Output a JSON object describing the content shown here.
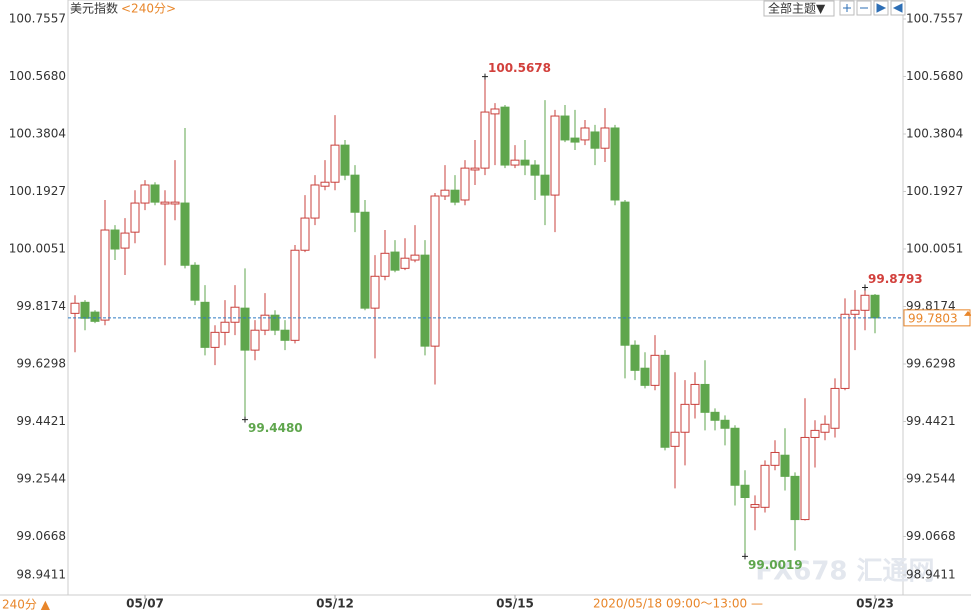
{
  "header": {
    "title": "美元指数",
    "period": "<240分>",
    "theme_button": "全部主题▼"
  },
  "footer": {
    "period": "240分 ▲",
    "cursor_time": "2020/05/18 09:00～13:00 —"
  },
  "watermark": "FX678 汇通网",
  "chart_data": {
    "type": "candlestick",
    "categories": [
      null,
      null,
      null,
      null,
      null,
      null,
      null,
      "05/07",
      null,
      null,
      null,
      null,
      null,
      null,
      null,
      null,
      null,
      null,
      null,
      null,
      null,
      null,
      null,
      null,
      null,
      null,
      "05/12",
      null,
      null,
      null,
      null,
      null,
      null,
      null,
      null,
      null,
      null,
      null,
      null,
      null,
      null,
      null,
      null,
      null,
      "05/15",
      null,
      null,
      null,
      null,
      null,
      null,
      null,
      null,
      null,
      null,
      null,
      null,
      null,
      null,
      null,
      null,
      null,
      null,
      null,
      null,
      null,
      null,
      null,
      null,
      null,
      null,
      null,
      null,
      null,
      null,
      null,
      null,
      null,
      null,
      null,
      "05/23"
    ],
    "open": [
      99.795,
      99.831,
      99.799,
      99.773,
      100.067,
      100.008,
      100.06,
      100.155,
      100.214,
      100.152,
      100.152,
      100.155,
      99.952,
      99.831,
      99.684,
      99.733,
      99.766,
      99.812,
      99.675,
      99.74,
      99.789,
      99.74,
      99.707,
      100.001,
      100.106,
      100.21,
      100.223,
      100.344,
      100.246,
      100.125,
      99.812,
      99.916,
      99.995,
      99.942,
      99.969,
      99.985,
      99.688,
      100.178,
      100.197,
      100.165,
      100.263,
      100.269,
      100.446,
      100.468,
      100.279,
      100.295,
      100.279,
      100.246,
      100.181,
      100.439,
      100.367,
      100.361,
      100.387,
      100.334,
      100.4,
      100.158,
      99.691,
      99.616,
      99.56,
      99.658,
      99.361,
      99.407,
      99.498,
      99.563,
      99.472,
      99.446,
      99.42,
      99.234,
      99.162,
      99.162,
      99.299,
      99.332,
      99.263,
      99.122,
      99.39,
      99.407,
      99.42,
      99.55,
      99.792,
      99.805,
      99.854
    ],
    "high": [
      99.854,
      99.838,
      99.805,
      100.165,
      100.083,
      100.106,
      100.197,
      100.23,
      100.223,
      100.197,
      100.295,
      100.4,
      99.962,
      99.887,
      99.756,
      99.838,
      99.887,
      99.942,
      99.773,
      99.861,
      99.805,
      99.773,
      100.018,
      100.181,
      100.246,
      100.295,
      100.442,
      100.361,
      100.279,
      100.165,
      99.985,
      100.067,
      100.034,
      100.04,
      100.083,
      100.034,
      100.188,
      100.279,
      100.246,
      100.295,
      100.361,
      100.5678,
      100.481,
      100.475,
      100.344,
      100.361,
      100.295,
      100.491,
      100.459,
      100.475,
      100.459,
      100.426,
      100.41,
      100.465,
      100.41,
      100.165,
      99.707,
      99.668,
      99.724,
      99.675,
      99.603,
      99.577,
      99.603,
      99.642,
      99.485,
      99.462,
      99.43,
      99.283,
      99.201,
      99.315,
      99.381,
      99.42,
      99.276,
      99.518,
      99.446,
      99.462,
      99.583,
      99.844,
      99.871,
      99.8793,
      99.858
    ],
    "low": [
      99.668,
      99.74,
      99.763,
      99.756,
      99.969,
      99.92,
      100.024,
      100.132,
      100.148,
      99.952,
      100.099,
      99.942,
      99.822,
      99.658,
      99.626,
      99.691,
      99.724,
      99.448,
      99.642,
      99.724,
      99.724,
      99.675,
      99.697,
      99.995,
      100.083,
      100.197,
      100.197,
      100.23,
      100.06,
      99.805,
      99.648,
      99.903,
      99.929,
      99.936,
      99.962,
      99.658,
      99.563,
      100.165,
      100.148,
      100.148,
      100.214,
      100.246,
      100.279,
      100.269,
      100.269,
      100.246,
      100.165,
      100.083,
      100.06,
      100.354,
      100.328,
      100.344,
      100.279,
      100.289,
      100.148,
      99.583,
      99.577,
      99.55,
      99.544,
      99.348,
      99.224,
      99.299,
      99.452,
      99.413,
      99.413,
      99.364,
      99.168,
      99.0019,
      99.087,
      99.145,
      99.283,
      99.217,
      99.021,
      99.119,
      99.292,
      99.381,
      99.39,
      99.544,
      99.675,
      99.74,
      99.73
    ],
    "close": [
      99.828,
      99.779,
      99.769,
      100.067,
      100.005,
      100.057,
      100.155,
      100.214,
      100.158,
      100.158,
      100.158,
      99.952,
      99.838,
      99.684,
      99.733,
      99.766,
      99.815,
      99.675,
      99.74,
      99.789,
      99.74,
      99.707,
      100.001,
      100.106,
      100.214,
      100.223,
      100.344,
      100.246,
      100.125,
      99.812,
      99.916,
      99.991,
      99.936,
      99.975,
      99.985,
      99.688,
      100.178,
      100.197,
      100.158,
      100.269,
      100.269,
      100.452,
      100.462,
      100.279,
      100.295,
      100.279,
      100.246,
      100.181,
      100.439,
      100.361,
      100.354,
      100.4,
      100.334,
      100.4,
      100.165,
      99.691,
      99.609,
      99.56,
      99.658,
      99.358,
      99.407,
      99.498,
      99.563,
      99.472,
      99.446,
      99.42,
      99.234,
      99.194,
      99.171,
      99.299,
      99.341,
      99.263,
      99.122,
      99.39,
      99.413,
      99.433,
      99.55,
      99.792,
      99.805,
      99.854,
      99.7803
    ],
    "up_color": "#c9403c",
    "down_color": "#5fa64d",
    "ylim": [
      98.9411,
      100.7557
    ],
    "yticks": [
      {
        "value": 100.7557,
        "label": "100.7557"
      },
      {
        "value": 100.568,
        "label": "100.5680"
      },
      100.3804,
      100.1927,
      100.0051,
      99.8174,
      99.6298,
      99.4421,
      99.2544,
      99.0668,
      98.9411
    ],
    "last_price": 99.7803,
    "last_price_color": "#2e7bc4",
    "last_label_color": "#e8862a",
    "annotations": [
      {
        "value": 100.5678,
        "label": "100.5678",
        "color": "#d2403c"
      },
      {
        "value": 99.448,
        "label": "99.4480",
        "color": "#5fa64d"
      },
      {
        "value": 99.0019,
        "label": "99.0019",
        "color": "#5fa64d"
      },
      {
        "value": 99.8793,
        "label": "99.8793",
        "color": "#d2403c"
      }
    ]
  }
}
